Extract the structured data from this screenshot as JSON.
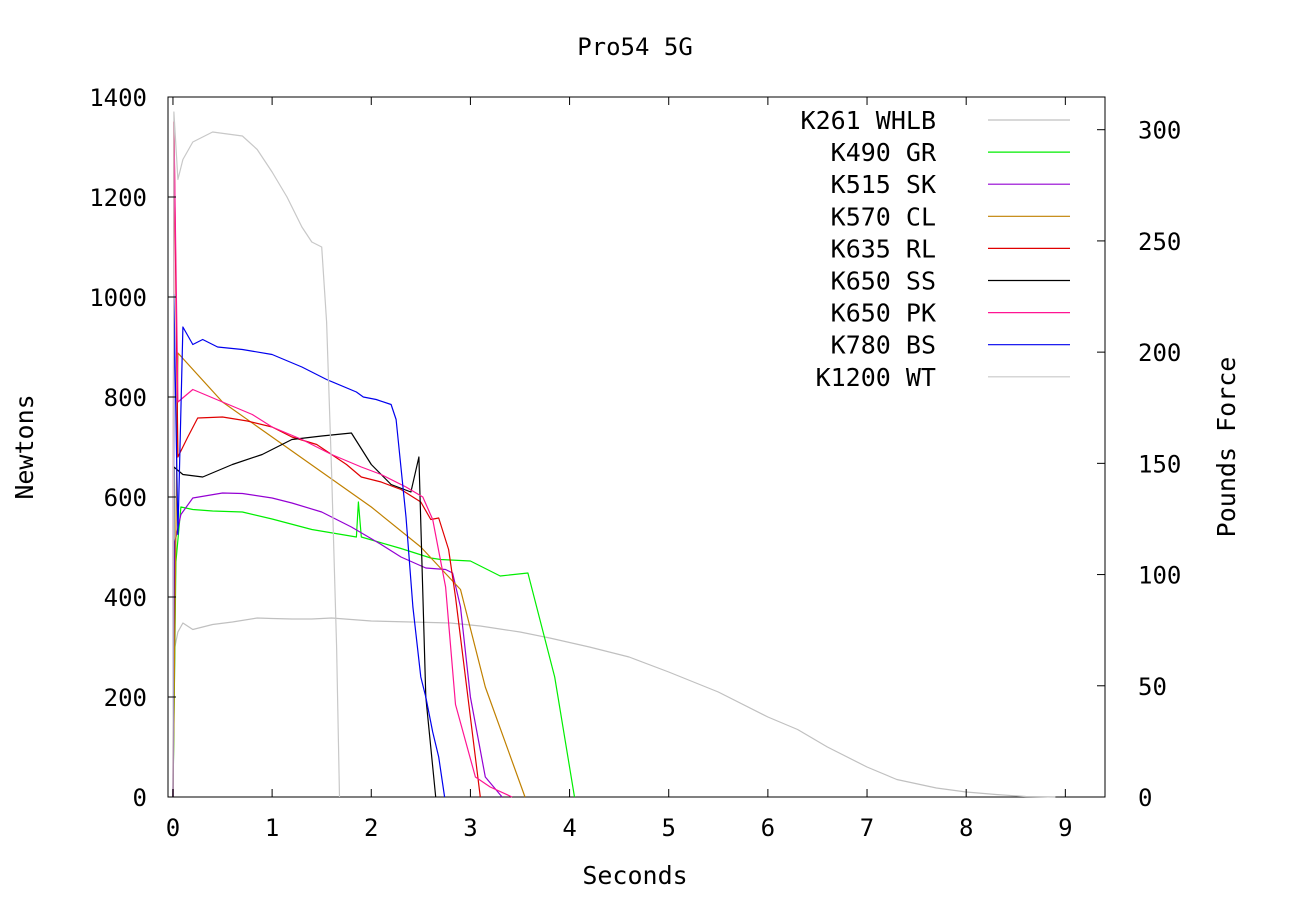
{
  "chart_data": {
    "type": "line",
    "title": "Pro54 5G",
    "xlabel": "Seconds",
    "ylabel": "Newtons",
    "y2label": "Pounds Force",
    "xlim": [
      -0.05,
      9.4
    ],
    "ylim": [
      0,
      1400
    ],
    "y2lim": [
      0,
      314.7
    ],
    "xticks": [
      "0",
      "1",
      "2",
      "3",
      "4",
      "5",
      "6",
      "7",
      "8",
      "9"
    ],
    "yticks": [
      "0",
      "200",
      "400",
      "600",
      "800",
      "1000",
      "1200",
      "1400"
    ],
    "y2ticks": [
      "0",
      "50",
      "100",
      "150",
      "200",
      "250",
      "300"
    ],
    "legend_position": "top-right",
    "grid": false,
    "series": [
      {
        "name": "K261 WHLB",
        "color": "#c0c0c0",
        "x": [
          0,
          0.02,
          0.05,
          0.1,
          0.2,
          0.4,
          0.6,
          0.85,
          1.0,
          1.2,
          1.4,
          1.6,
          1.8,
          2.0,
          2.4,
          2.8,
          3.1,
          3.5,
          3.8,
          4.2,
          4.6,
          5.0,
          5.5,
          6.0,
          6.3,
          6.6,
          7.0,
          7.3,
          7.7,
          8.0,
          8.3,
          8.6,
          8.9
        ],
        "y": [
          0,
          300,
          330,
          348,
          335,
          345,
          350,
          358,
          357,
          356,
          356,
          358,
          355,
          352,
          350,
          348,
          342,
          330,
          318,
          300,
          280,
          250,
          210,
          160,
          135,
          100,
          60,
          35,
          18,
          10,
          5,
          1,
          0
        ]
      },
      {
        "name": "K490 GR",
        "color": "#00ee00",
        "x": [
          0,
          0.03,
          0.08,
          0.2,
          0.4,
          0.7,
          1.0,
          1.4,
          1.85,
          1.87,
          1.9,
          2.3,
          2.6,
          2.7,
          3.0,
          3.3,
          3.58,
          3.85,
          4.05
        ],
        "y": [
          0,
          470,
          580,
          575,
          572,
          570,
          556,
          535,
          520,
          590,
          520,
          497,
          478,
          475,
          472,
          442,
          448,
          240,
          0
        ]
      },
      {
        "name": "K515 SK",
        "color": "#9400d3",
        "x": [
          0,
          0.02,
          0.08,
          0.2,
          0.5,
          0.7,
          1.0,
          1.2,
          1.5,
          1.8,
          2.1,
          2.3,
          2.55,
          2.75,
          2.82,
          2.9,
          3.0,
          3.15,
          3.32
        ],
        "y": [
          0,
          510,
          565,
          598,
          608,
          607,
          598,
          588,
          570,
          540,
          505,
          480,
          458,
          455,
          448,
          380,
          200,
          40,
          0
        ]
      },
      {
        "name": "K570 CL",
        "color": "#c08000",
        "x": [
          0,
          0.05,
          0.5,
          1.0,
          1.5,
          2.0,
          2.5,
          2.9,
          3.15,
          3.55
        ],
        "y": [
          0,
          888,
          790,
          720,
          650,
          580,
          500,
          415,
          220,
          0
        ]
      },
      {
        "name": "K635 RL",
        "color": "#e00000",
        "x": [
          0,
          0.01,
          0.05,
          0.15,
          0.25,
          0.5,
          0.75,
          1.0,
          1.2,
          1.45,
          1.75,
          1.9,
          2.1,
          2.3,
          2.5,
          2.6,
          2.68,
          2.78,
          2.85,
          3.1
        ],
        "y": [
          0,
          1350,
          680,
          720,
          758,
          760,
          752,
          740,
          720,
          705,
          665,
          640,
          630,
          615,
          590,
          555,
          558,
          495,
          400,
          0
        ]
      },
      {
        "name": "K650 SS",
        "color": "#000000",
        "x": [
          0,
          0.01,
          0.1,
          0.3,
          0.6,
          0.9,
          1.2,
          1.5,
          1.8,
          2.0,
          2.2,
          2.4,
          2.48,
          2.55,
          2.65
        ],
        "y": [
          0,
          660,
          645,
          640,
          665,
          685,
          715,
          722,
          728,
          665,
          625,
          610,
          680,
          200,
          0
        ]
      },
      {
        "name": "K650 PK",
        "color": "#ff1493",
        "x": [
          0,
          0.01,
          0.05,
          0.2,
          0.5,
          0.8,
          1.0,
          1.3,
          1.6,
          1.9,
          2.1,
          2.35,
          2.52,
          2.62,
          2.75,
          2.85,
          3.05,
          3.2,
          3.42
        ],
        "y": [
          0,
          1350,
          790,
          815,
          790,
          765,
          740,
          715,
          685,
          660,
          645,
          620,
          600,
          555,
          420,
          185,
          40,
          20,
          0
        ]
      },
      {
        "name": "K780 BS",
        "color": "#0000ee",
        "x": [
          0,
          0.01,
          0.05,
          0.1,
          0.2,
          0.3,
          0.45,
          0.7,
          1.0,
          1.3,
          1.55,
          1.85,
          1.92,
          2.05,
          2.2,
          2.25,
          2.35,
          2.42,
          2.5,
          2.55,
          2.62,
          2.68,
          2.74
        ],
        "y": [
          0,
          1005,
          525,
          940,
          905,
          915,
          900,
          895,
          885,
          860,
          835,
          810,
          800,
          795,
          785,
          755,
          560,
          380,
          240,
          200,
          130,
          80,
          0
        ]
      },
      {
        "name": "K1200 WT",
        "color": "#c8c8c8",
        "x": [
          0,
          0.01,
          0.05,
          0.1,
          0.2,
          0.4,
          0.7,
          0.85,
          1.0,
          1.15,
          1.3,
          1.4,
          1.5,
          1.55,
          1.6,
          1.65,
          1.68
        ],
        "y": [
          0,
          1370,
          1235,
          1275,
          1310,
          1330,
          1322,
          1295,
          1250,
          1200,
          1140,
          1110,
          1100,
          950,
          650,
          300,
          0
        ]
      }
    ]
  }
}
